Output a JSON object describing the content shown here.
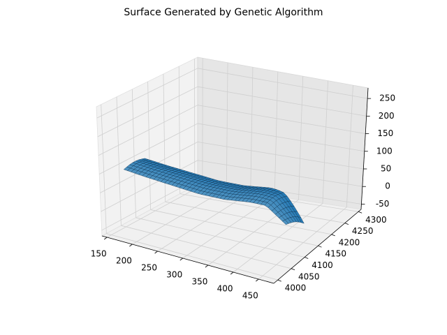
{
  "chart_data": {
    "type": "surface",
    "title": "Surface Generated by Genetic Algorithm",
    "xlabel": "",
    "ylabel": "",
    "zlabel": "",
    "grid": true,
    "x_ticks": [
      150,
      200,
      250,
      300,
      350,
      400,
      450
    ],
    "y_ticks": [
      4000,
      4050,
      4100,
      4150,
      4200,
      4250,
      4300
    ],
    "z_ticks": [
      -50,
      0,
      50,
      100,
      150,
      200,
      250
    ],
    "xlim": [
      140,
      480
    ],
    "ylim": [
      3985,
      4310
    ],
    "zlim": [
      -65,
      280
    ],
    "surface": {
      "color": "#1f77b4",
      "edge_color": "#0d2a44",
      "x_range": [
        155,
        470
      ],
      "y_range": [
        4040,
        4110
      ],
      "centerline_z": [
        {
          "x": 155,
          "z": 95
        },
        {
          "x": 200,
          "z": 90
        },
        {
          "x": 250,
          "z": 86
        },
        {
          "x": 300,
          "z": 82
        },
        {
          "x": 350,
          "z": 85
        },
        {
          "x": 400,
          "z": 96
        },
        {
          "x": 430,
          "z": 98
        },
        {
          "x": 470,
          "z": 60
        }
      ]
    }
  }
}
